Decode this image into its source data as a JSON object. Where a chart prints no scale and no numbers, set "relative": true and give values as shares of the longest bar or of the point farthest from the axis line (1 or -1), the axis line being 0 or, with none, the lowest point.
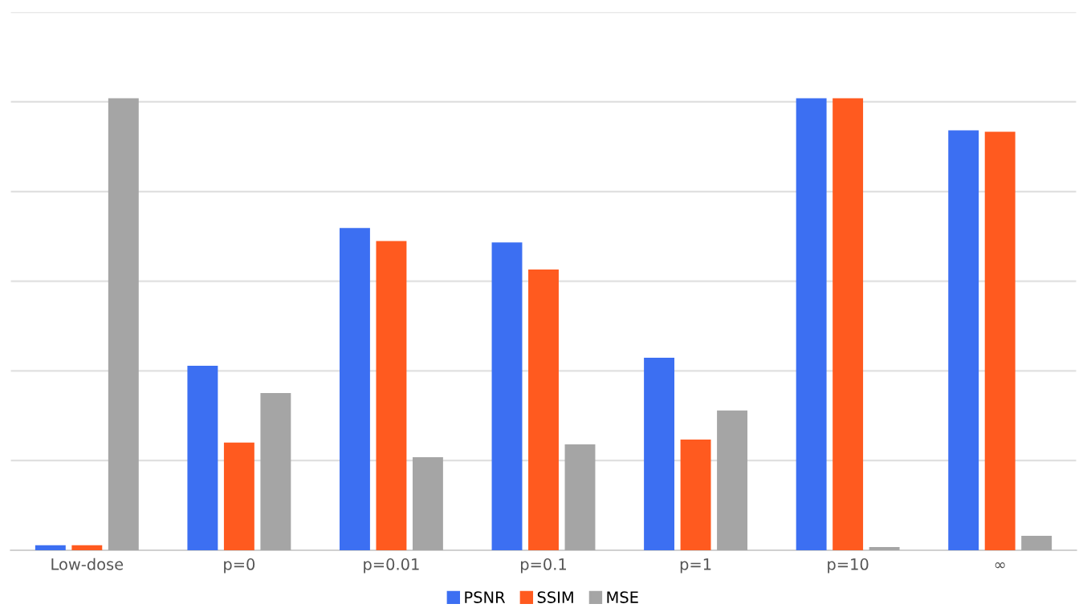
{
  "chart_data": {
    "type": "bar",
    "relative": true,
    "grid": "y",
    "legend": "bottom",
    "categories": [
      "Low-dose",
      "p=0",
      "p=0.01",
      "p=0.1",
      "p=1",
      "p=10",
      "∞"
    ],
    "series": [
      {
        "name": "PSNR",
        "color": "#3c6ff2",
        "values": [
          0.011,
          0.408,
          0.713,
          0.681,
          0.426,
          1,
          0.929
        ]
      },
      {
        "name": "SSIM",
        "color": "#ff5a1f",
        "values": [
          0.011,
          0.238,
          0.684,
          0.621,
          0.245,
          1,
          0.926
        ]
      },
      {
        "name": "MSE",
        "color": "#a5a5a5",
        "values": [
          1,
          0.348,
          0.206,
          0.234,
          0.309,
          0.007,
          0.032
        ]
      }
    ]
  }
}
